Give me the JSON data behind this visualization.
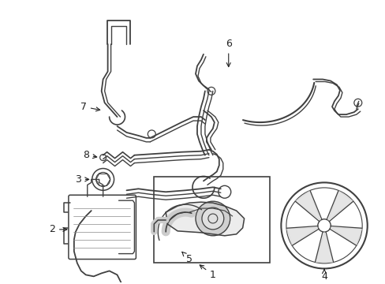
{
  "bg_color": "#ffffff",
  "line_color": "#404040",
  "label_color": "#222222",
  "label_fontsize": 9,
  "figsize": [
    4.89,
    3.6
  ],
  "dpi": 100
}
